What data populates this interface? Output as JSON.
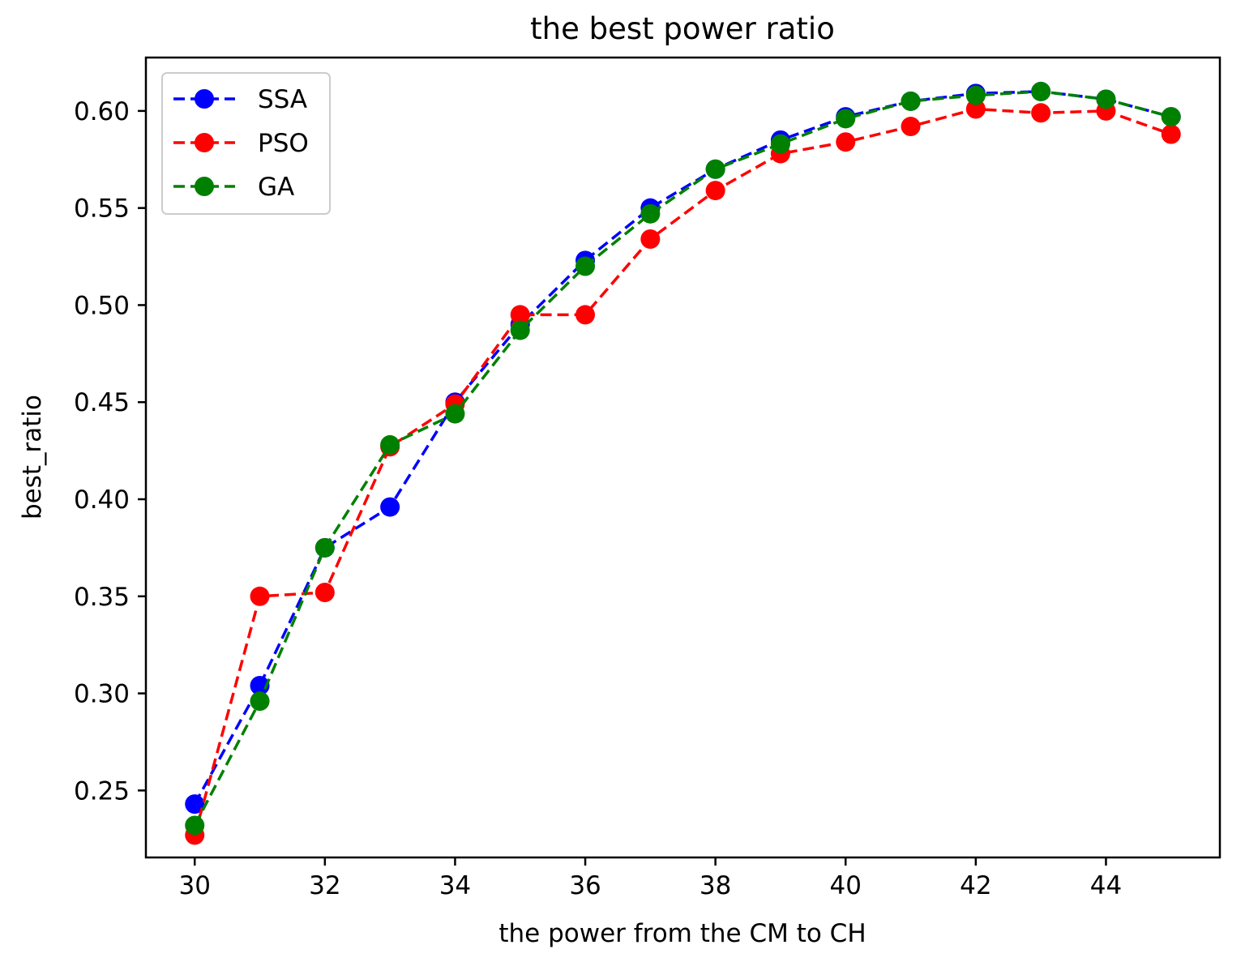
{
  "chart_data": {
    "type": "line",
    "title": "the best power ratio",
    "xlabel": "the power from the CM to CH",
    "ylabel": "best_ratio",
    "xlim": [
      29.25,
      45.75
    ],
    "ylim": [
      0.2155,
      0.6275
    ],
    "xticks": [
      30,
      32,
      34,
      36,
      38,
      40,
      42,
      44
    ],
    "xtick_labels": [
      "30",
      "32",
      "34",
      "36",
      "38",
      "40",
      "42",
      "44"
    ],
    "yticks": [
      0.25,
      0.3,
      0.35,
      0.4,
      0.45,
      0.5,
      0.55,
      0.6
    ],
    "ytick_labels": [
      "0.25",
      "0.30",
      "0.35",
      "0.40",
      "0.45",
      "0.50",
      "0.55",
      "0.60"
    ],
    "grid": false,
    "legend_position": "top-left",
    "x": [
      30,
      31,
      32,
      33,
      34,
      35,
      36,
      37,
      38,
      39,
      40,
      41,
      42,
      43,
      44,
      45
    ],
    "series": [
      {
        "name": "SSA",
        "color": "#0000ff",
        "line_style": "dashed",
        "marker": "circle",
        "values": [
          0.243,
          0.304,
          0.375,
          0.396,
          0.45,
          0.49,
          0.523,
          0.55,
          0.57,
          0.585,
          0.597,
          0.605,
          0.609,
          0.61,
          0.606,
          0.597
        ]
      },
      {
        "name": "PSO",
        "color": "#ff0000",
        "line_style": "dashed",
        "marker": "circle",
        "values": [
          0.227,
          0.35,
          0.352,
          0.427,
          0.449,
          0.495,
          0.495,
          0.534,
          0.559,
          0.578,
          0.584,
          0.592,
          0.601,
          0.599,
          0.6,
          0.588
        ]
      },
      {
        "name": "GA",
        "color": "#008000",
        "line_style": "dashed",
        "marker": "circle",
        "values": [
          0.232,
          0.296,
          0.375,
          0.428,
          0.444,
          0.487,
          0.52,
          0.547,
          0.57,
          0.583,
          0.596,
          0.605,
          0.608,
          0.61,
          0.606,
          0.597
        ]
      }
    ]
  }
}
